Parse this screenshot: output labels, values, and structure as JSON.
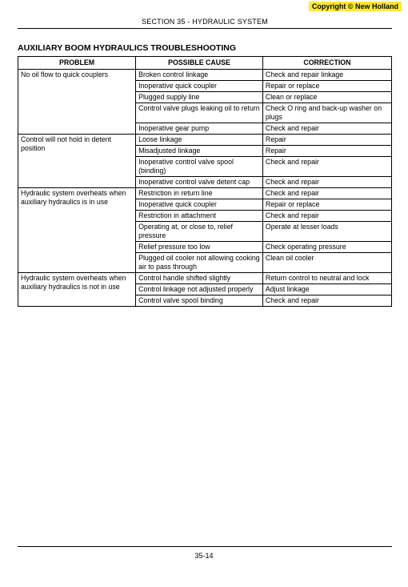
{
  "copyright": "Copyright © New Holland",
  "section_header": "SECTION 35 - HYDRAULIC SYSTEM",
  "title": "AUXILIARY BOOM HYDRAULICS TROUBLESHOOTING",
  "headers": {
    "c1": "PROBLEM",
    "c2": "POSSIBLE CAUSE",
    "c3": "CORRECTION"
  },
  "groups": [
    {
      "problem": "No oil flow to quick couplers",
      "rows": [
        {
          "cause": "Broken control linkage",
          "correction": "Check and repair linkage"
        },
        {
          "cause": "Inoperative quick coupler",
          "correction": "Repair or replace"
        },
        {
          "cause": "Plugged supply line",
          "correction": "Clean or replace"
        },
        {
          "cause": "Control valve plugs leaking oil to return",
          "correction": "Check O ring and back-up washer on plugs"
        },
        {
          "cause": "Inoperative gear pump",
          "correction": "Check and repair"
        }
      ]
    },
    {
      "problem": "Control will not hold in detent position",
      "rows": [
        {
          "cause": "Loose linkage",
          "correction": "Repair"
        },
        {
          "cause": "Misadjusted linkage",
          "correction": "Repair"
        },
        {
          "cause": "Inoperative control valve spool (binding)",
          "correction": "Check and repair"
        },
        {
          "cause": "Inoperative control valve detent cap",
          "correction": "Check and repair"
        }
      ]
    },
    {
      "problem": "Hydraulic system overheats when auxiliary hydraulics is in use",
      "rows": [
        {
          "cause": "Restriction in return line",
          "correction": "Check and repair"
        },
        {
          "cause": "Inoperative quick coupler",
          "correction": "Repair or replace"
        },
        {
          "cause": "Restriction in attachment",
          "correction": "Check and repair"
        },
        {
          "cause": "Operating at, or close to, relief pressure",
          "correction": "Operate at lesser loads"
        },
        {
          "cause": "Relief pressure too low",
          "correction": "Check operating pressure"
        },
        {
          "cause": "Plugged oil cooler not allowing cooking air to pass through",
          "correction": "Clean oil cooler"
        }
      ]
    },
    {
      "problem": "Hydraulic system overheats when auxiliary hydraulics is not in use",
      "rows": [
        {
          "cause": "Control handle shifted slightly",
          "correction": "Return control to neutral and lock"
        },
        {
          "cause": "Control linkage not adjusted properly",
          "correction": "Adjust linkage"
        },
        {
          "cause": "Control valve spool binding",
          "correction": "Check and repair"
        }
      ]
    }
  ],
  "page_number": "35-14"
}
